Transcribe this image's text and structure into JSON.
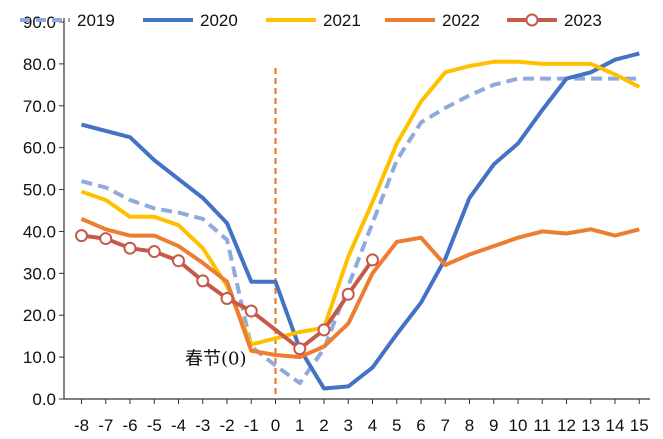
{
  "chart_data": {
    "type": "line",
    "title": "",
    "xlabel": "",
    "ylabel": "",
    "x": [
      -8,
      -7,
      -6,
      -5,
      -4,
      -3,
      -2,
      -1,
      0,
      1,
      2,
      3,
      4,
      5,
      6,
      7,
      8,
      9,
      10,
      11,
      12,
      13,
      14,
      15
    ],
    "x_tick_labels": [
      "-8",
      "-7",
      "-6",
      "-5",
      "-4",
      "-3",
      "-2",
      "-1",
      "0",
      "1",
      "2",
      "3",
      "4",
      "5",
      "6",
      "7",
      "8",
      "9",
      "10",
      "11",
      "12",
      "13",
      "14",
      "15"
    ],
    "ylim": [
      0,
      90
    ],
    "y_ticks": [
      0,
      10,
      20,
      30,
      40,
      50,
      60,
      70,
      80,
      90
    ],
    "y_tick_labels": [
      "0.0",
      "10.0",
      "20.0",
      "30.0",
      "40.0",
      "50.0",
      "60.0",
      "70.0",
      "80.0",
      "90.0"
    ],
    "grid": false,
    "legend_position": "top",
    "series": [
      {
        "name": "2019",
        "color": "#8FAADC",
        "style": "dashed",
        "values": [
          52,
          50.5,
          47.5,
          45.5,
          44.5,
          43,
          38,
          12.5,
          8,
          3.8,
          12,
          27,
          42,
          57,
          66,
          69.5,
          72.5,
          75,
          76.5,
          76.5,
          76.5,
          76.5,
          76.5,
          76.5
        ]
      },
      {
        "name": "2020",
        "color": "#4472C4",
        "style": "solid",
        "values": [
          65.5,
          64,
          62.5,
          57,
          52.5,
          48,
          42,
          28,
          28,
          12,
          2.5,
          3,
          7.5,
          15.5,
          23,
          33.5,
          48,
          56,
          61,
          69,
          76.5,
          78,
          81,
          82.5
        ]
      },
      {
        "name": "2021",
        "color": "#FFC000",
        "style": "solid",
        "values": [
          49.5,
          47.5,
          43.5,
          43.5,
          41.5,
          36,
          27,
          13,
          14.5,
          16,
          17,
          34,
          47,
          61,
          71,
          78,
          79.5,
          80.5,
          80.5,
          80,
          80,
          80,
          77.5,
          74.5
        ]
      },
      {
        "name": "2022",
        "color": "#ED7D31",
        "style": "solid",
        "values": [
          43,
          40.5,
          39,
          39,
          36.5,
          32.5,
          28,
          11.5,
          10.5,
          10,
          12.5,
          18,
          30,
          37.5,
          38.5,
          32,
          34.5,
          36.5,
          38.5,
          40,
          39.5,
          40.5,
          39,
          40.5
        ]
      },
      {
        "name": "2023",
        "color": "#C55A4A",
        "style": "solid-markers",
        "values": [
          39,
          38.3,
          36,
          35.2,
          33,
          28.2,
          24,
          21,
          null,
          12,
          16.5,
          25,
          33.2,
          null,
          null,
          null,
          null,
          null,
          null,
          null,
          null,
          null,
          null,
          null
        ]
      }
    ],
    "vline": {
      "x": 0,
      "color": "#ED7D31",
      "style": "dashed"
    },
    "annotation": {
      "text": "春节(0)",
      "x": 0,
      "y": 8.5
    }
  }
}
